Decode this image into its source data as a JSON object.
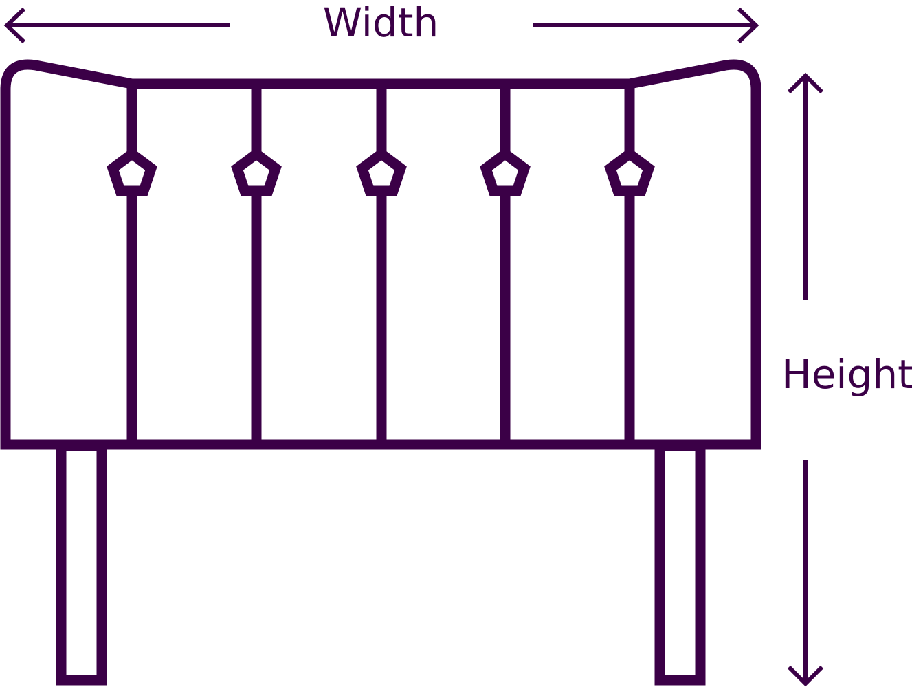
{
  "diagram": {
    "width_label": "Width",
    "height_label": "Height",
    "colors": {
      "line": "#3b0047",
      "background": "#ffffff"
    },
    "button_count": 5
  }
}
